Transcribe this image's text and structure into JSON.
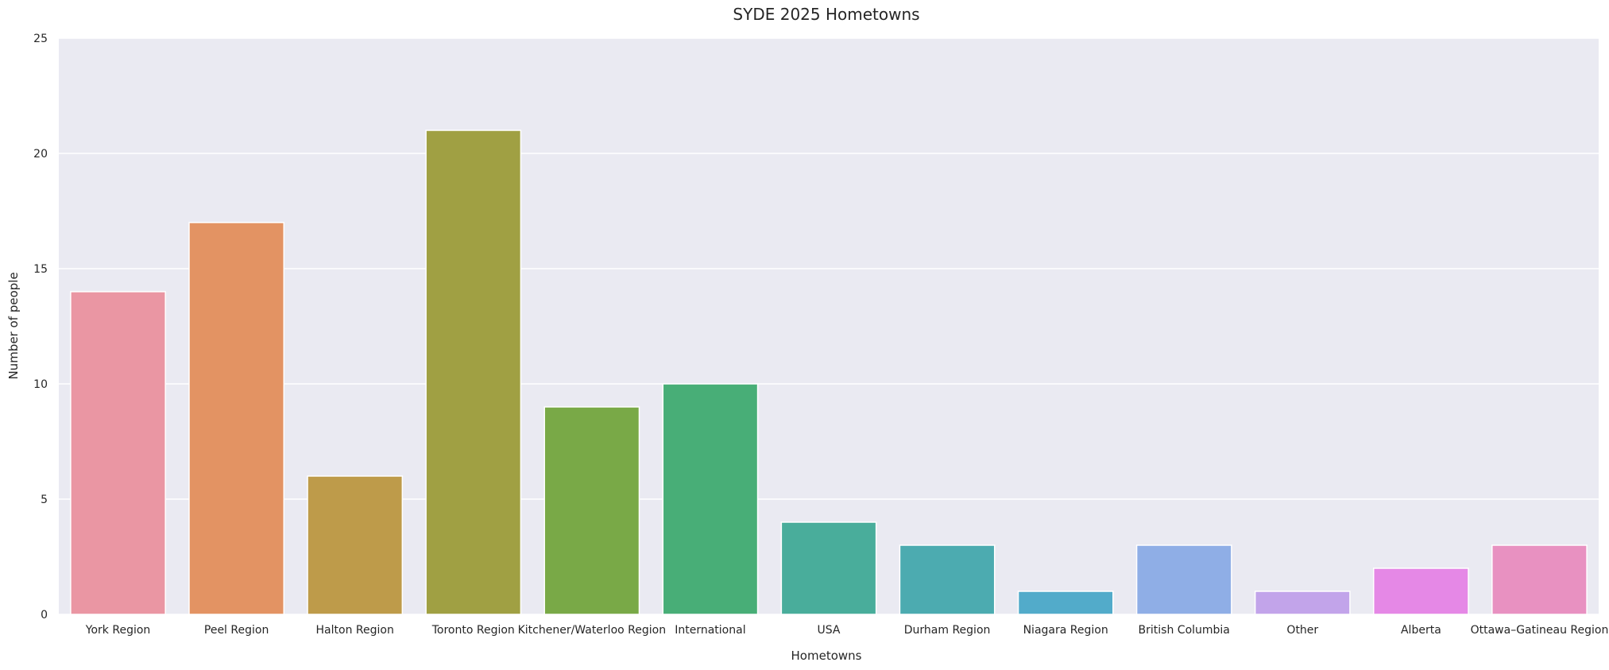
{
  "chart_data": {
    "type": "bar",
    "title": "SYDE 2025 Hometowns",
    "xlabel": "Hometowns",
    "ylabel": "Number of people",
    "ylim": [
      0,
      25
    ],
    "yticks": [
      0,
      5,
      10,
      15,
      20,
      25
    ],
    "grid": true,
    "legend": "none",
    "background_color": "#eaeaf2",
    "categories": [
      "York Region",
      "Peel Region",
      "Halton Region",
      "Toronto Region",
      "Kitchener/Waterloo Region",
      "International",
      "USA",
      "Durham Region",
      "Niagara Region",
      "British Columbia",
      "Other",
      "Alberta",
      "Ottawa–Gatineau Region"
    ],
    "values": [
      14,
      17,
      6,
      21,
      9,
      10,
      4,
      3,
      1,
      3,
      1,
      2,
      3
    ],
    "colors": [
      "#ea96a3",
      "#e39363",
      "#be9b4a",
      "#a0a043",
      "#79a947",
      "#48ae77",
      "#49ad9b",
      "#4cabb0",
      "#52abca",
      "#8faee6",
      "#c2a4ea",
      "#e588e6",
      "#e891c1"
    ]
  }
}
